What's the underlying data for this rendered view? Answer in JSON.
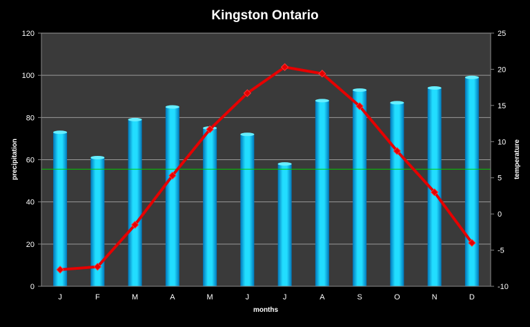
{
  "chart_data": {
    "type": "bar",
    "title": "Kingston Ontario",
    "xlabel": "months",
    "ylabel": "precipitation",
    "y2label": "temperature",
    "categories": [
      "J",
      "F",
      "M",
      "A",
      "M",
      "J",
      "J",
      "A",
      "S",
      "O",
      "N",
      "D"
    ],
    "ylim": [
      0,
      120
    ],
    "yticks": [
      0,
      20,
      40,
      60,
      80,
      100,
      120
    ],
    "y2lim": [
      -10,
      25
    ],
    "y2ticks": [
      -10,
      -5,
      0,
      5,
      10,
      15,
      20,
      25
    ],
    "grid": true,
    "series": [
      {
        "type": "bar",
        "axis": "left",
        "color": "#00ccff",
        "values": [
          73,
          61,
          79,
          85,
          75,
          72,
          58,
          88,
          93,
          87,
          94,
          99
        ]
      },
      {
        "type": "line",
        "axis": "right",
        "color": "#e60000",
        "values": [
          -7.7,
          -7.3,
          -1.5,
          5.3,
          11.7,
          16.7,
          20.3,
          19.4,
          14.9,
          8.7,
          3.0,
          -4.0
        ]
      }
    ],
    "reference_line": {
      "axis": "left",
      "value": 55.5,
      "color": "#00cc00"
    },
    "colors": {
      "background": "#000000",
      "plot_area": "#3a3a3a",
      "gridline": "#9a9a9a",
      "text": "#ffffff"
    }
  }
}
